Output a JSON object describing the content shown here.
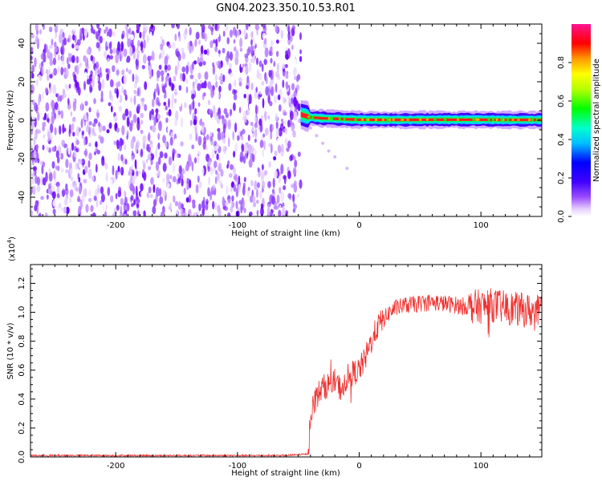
{
  "title": "GN04.2023.350.10.53.R01",
  "chart_data": [
    {
      "type": "heatmap",
      "xlabel": "Height of straight line (km)",
      "ylabel": "Frequency (Hz)",
      "xlim": [
        -270,
        150
      ],
      "ylim": [
        -50,
        50
      ],
      "xticks": [
        -200,
        -100,
        0,
        100
      ],
      "yticks": [
        -40,
        -20,
        0,
        20,
        40
      ],
      "noise_region_x": [
        -270,
        -48
      ],
      "signal_ridge": {
        "x": [
          -48,
          -40,
          -30,
          -20,
          -10,
          0,
          20,
          40,
          60,
          80,
          100,
          120,
          150
        ],
        "y": [
          3,
          1.5,
          1,
          0.8,
          0.5,
          0.3,
          0.2,
          0.2,
          0.3,
          0.3,
          0.3,
          0.2,
          0.2
        ]
      },
      "faint_trail": {
        "x": [
          -45,
          -40,
          -35,
          -30,
          -25,
          -20,
          -10
        ],
        "y": [
          -1,
          -4,
          -8,
          -12,
          -16,
          -19,
          -25
        ]
      },
      "colorbar": {
        "label": "Normalized spectral amplitude",
        "ticks": [
          0.0,
          0.2,
          0.4,
          0.6,
          0.8
        ],
        "range": [
          0,
          1
        ]
      }
    },
    {
      "type": "line",
      "xlabel": "Height of straight line (km)",
      "ylabel": "SNR (10 * v/v)",
      "y_multiplier": "(x10",
      "y_multiplier_exp": "4",
      "y_multiplier_close": ")",
      "xlim": [
        -270,
        150
      ],
      "ylim": [
        0,
        1.33
      ],
      "xticks": [
        -200,
        -100,
        0,
        100
      ],
      "yticks": [
        0.0,
        0.2,
        0.4,
        0.6,
        0.8,
        1.0,
        1.2
      ],
      "series": [
        {
          "color": "#f0302e",
          "x": [
            -270,
            -60,
            -42,
            -40,
            -35,
            -30,
            -25,
            -20,
            -15,
            -10,
            -5,
            0,
            5,
            10,
            15,
            20,
            25,
            30,
            40,
            50,
            60,
            70,
            80,
            90,
            100,
            110,
            120,
            130,
            140,
            150
          ],
          "y": [
            0.01,
            0.01,
            0.02,
            0.3,
            0.42,
            0.48,
            0.5,
            0.52,
            0.47,
            0.55,
            0.58,
            0.6,
            0.68,
            0.8,
            0.9,
            0.95,
            1.0,
            1.03,
            1.05,
            1.06,
            1.07,
            1.06,
            1.05,
            1.04,
            1.04,
            1.05,
            1.03,
            1.02,
            1.01,
            1.0
          ]
        }
      ]
    }
  ]
}
